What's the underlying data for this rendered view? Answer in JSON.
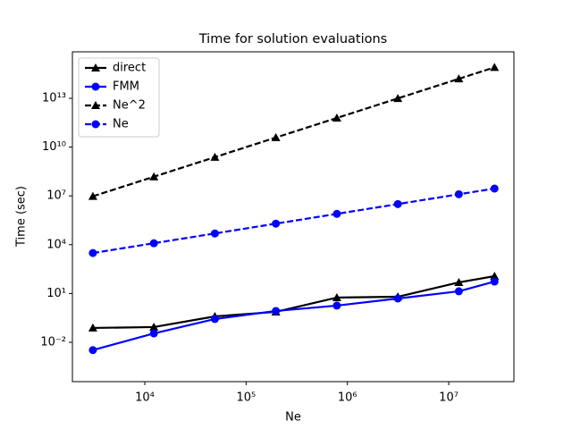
{
  "chart_data": {
    "type": "line",
    "title": "Time for solution evaluations",
    "xlabel": "Ne",
    "ylabel": "Time (sec)",
    "xscale": "log",
    "yscale": "log",
    "legend": "upper left",
    "x": [
      3072,
      12288,
      49152,
      196608,
      786432,
      3145728,
      12582912,
      28311552
    ],
    "xlim": [
      1928,
      44000000
    ],
    "ylim": [
      3.8e-05,
      7200000000000000
    ],
    "xticks": [
      {
        "value": 10000,
        "label": "10⁴"
      },
      {
        "value": 100000,
        "label": "10⁵"
      },
      {
        "value": 1000000,
        "label": "10⁶"
      },
      {
        "value": 10000000,
        "label": "10⁷"
      }
    ],
    "yticks": [
      {
        "value": 0.01,
        "label": "10⁻²"
      },
      {
        "value": 10,
        "label": "10¹"
      },
      {
        "value": 10000,
        "label": "10⁴"
      },
      {
        "value": 10000000,
        "label": "10⁷"
      },
      {
        "value": 10000000000,
        "label": "10¹⁰"
      },
      {
        "value": 10000000000000,
        "label": "10¹³"
      }
    ],
    "series": [
      {
        "name": "direct",
        "color": "#000000",
        "linestyle": "solid",
        "marker": "triangle",
        "values": [
          0.076,
          0.086,
          0.39,
          0.74,
          5.6,
          6.3,
          48,
          116
        ]
      },
      {
        "name": "FMM",
        "color": "#0000ff",
        "linestyle": "solid",
        "marker": "circle",
        "values": [
          0.0033,
          0.035,
          0.27,
          0.84,
          1.8,
          4.9,
          13.6,
          54
        ]
      },
      {
        "name": "Ne^2",
        "color": "#000000",
        "linestyle": "dashed",
        "marker": "triangle",
        "values": [
          9437184,
          150994944,
          2415919104,
          38654705664,
          618475290624,
          9895604649984,
          158329674399744,
          801543976648704
        ]
      },
      {
        "name": "Ne",
        "color": "#0000ff",
        "linestyle": "dashed",
        "marker": "circle",
        "values": [
          3072,
          12288,
          49152,
          196608,
          786432,
          3145728,
          12582912,
          28311552
        ]
      }
    ]
  }
}
